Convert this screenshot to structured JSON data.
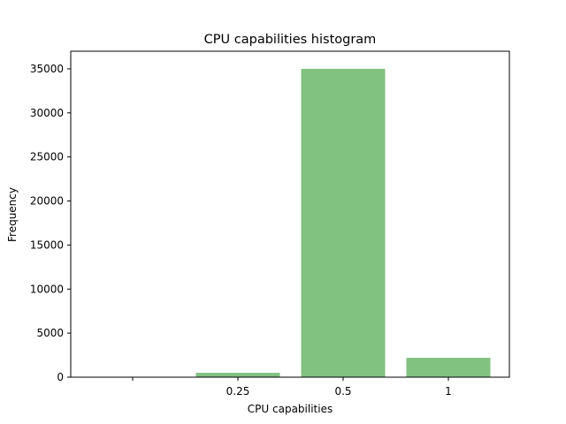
{
  "chart_data": {
    "type": "bar",
    "title": "CPU capabilities histogram",
    "xlabel": "CPU capabilities",
    "ylabel": "Frequency",
    "categories": [
      "",
      "0.25",
      "0.5",
      "1"
    ],
    "values": [
      0,
      500,
      35000,
      2200
    ],
    "ylim": [
      0,
      37000
    ],
    "yticks": [
      0,
      5000,
      10000,
      15000,
      20000,
      25000,
      30000,
      35000
    ],
    "ytick_labels": [
      "0",
      "5000",
      "10000",
      "15000",
      "20000",
      "25000",
      "30000",
      "35000"
    ],
    "bar_color": "#81c281",
    "grid": false,
    "legend": "none"
  }
}
